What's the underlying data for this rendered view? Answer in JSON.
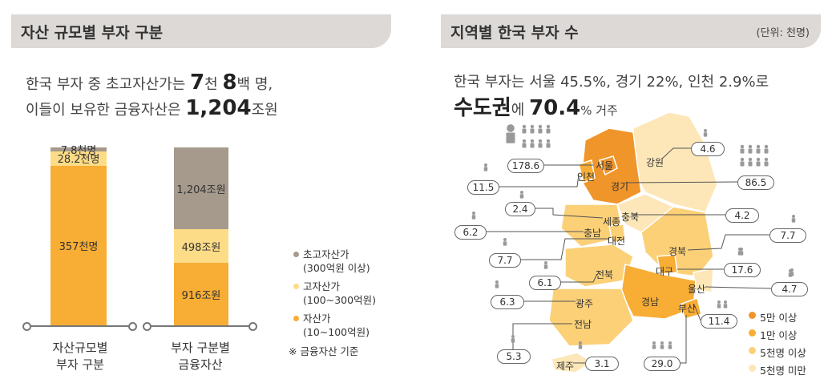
{
  "left": {
    "header": "자산 규모별 부자 구분",
    "line1": {
      "pre": "한국 부자 중 초고자산가는 ",
      "n1": "7",
      "u1": "천 ",
      "n2": "8",
      "u2": "백 명,"
    },
    "line2": {
      "pre": "이들이 보유한 금융자산은 ",
      "n": "1,204",
      "u": "조원"
    },
    "bar1_label": "자산규모별\n부자 구분",
    "bar2_label": "부자 구분별\n금융자산",
    "legend": [
      {
        "name": "초고자산가",
        "sub": "(300억원 이상)",
        "color": "#a69a8c"
      },
      {
        "name": "고자산가",
        "sub": "(100~300억원)",
        "color": "#fddc87"
      },
      {
        "name": "자산가",
        "sub": "(10~100억원)",
        "color": "#f8ad34"
      }
    ],
    "note": "※ 금융자산 기준"
  },
  "chart_data": [
    {
      "type": "bar",
      "stacked": true,
      "categories": [
        "자산규모별 부자 구분",
        "부자 구분별 금융자산"
      ],
      "series": [
        {
          "name": "자산가",
          "values": [
            357,
            916
          ],
          "labels": [
            "357천명",
            "916조원"
          ],
          "color": "#f8ad34"
        },
        {
          "name": "고자산가",
          "values": [
            28.2,
            498
          ],
          "labels": [
            "28.2천명",
            "498조원"
          ],
          "color": "#fddc87"
        },
        {
          "name": "초고자산가",
          "values": [
            7.8,
            1204
          ],
          "labels": [
            "7.8천명",
            "1,204조원"
          ],
          "color": "#a69a8c"
        }
      ]
    },
    {
      "type": "map",
      "unit": "(단위: 천명)",
      "regions": [
        {
          "name": "서울",
          "value": 178.6,
          "label": "178.6",
          "tier": "5만 이상"
        },
        {
          "name": "경기",
          "value": 86.5,
          "label": "86.5",
          "tier": "5만 이상"
        },
        {
          "name": "인천",
          "value": 11.5,
          "label": "11.5",
          "tier": "1만 이상"
        },
        {
          "name": "강원",
          "value": 4.6,
          "label": "4.6",
          "tier": "5천명 미만"
        },
        {
          "name": "세종",
          "value": 2.4,
          "label": "2.4",
          "tier": "5천명 미만"
        },
        {
          "name": "충북",
          "value": 4.2,
          "label": "4.2",
          "tier": "5천명 미만"
        },
        {
          "name": "충남",
          "value": 6.2,
          "label": "6.2",
          "tier": "5천명 이상"
        },
        {
          "name": "대전",
          "value": 7.7,
          "label": "7.7",
          "tier": "5천명 이상"
        },
        {
          "name": "경북",
          "value": 7.7,
          "label": "7.7",
          "tier": "5천명 이상"
        },
        {
          "name": "대구",
          "value": 17.6,
          "label": "17.6",
          "tier": "1만 이상"
        },
        {
          "name": "전북",
          "value": 6.1,
          "label": "6.1",
          "tier": "5천명 이상"
        },
        {
          "name": "울산",
          "value": 4.7,
          "label": "4.7",
          "tier": "5천명 미만"
        },
        {
          "name": "광주",
          "value": 6.3,
          "label": "6.3",
          "tier": "5천명 이상"
        },
        {
          "name": "경남",
          "value": 11.4,
          "label": "11.4",
          "tier": "1만 이상"
        },
        {
          "name": "부산",
          "value": 29.0,
          "label": "29.0",
          "tier": "1만 이상"
        },
        {
          "name": "전남",
          "value": 5.3,
          "label": "5.3",
          "tier": "5천명 이상"
        },
        {
          "name": "제주",
          "value": 3.1,
          "label": "3.1",
          "tier": "5천명 미만"
        }
      ]
    }
  ],
  "right": {
    "header": "지역별 한국 부자 수",
    "unit": "(단위: 천명)",
    "line1": "한국 부자는 서울 45.5%, 경기 22%, 인천 2.9%로",
    "line2": {
      "a": "수도권",
      "b": "에 ",
      "n": "70.4",
      "c": "% 거주"
    },
    "legend": [
      {
        "name": "5만 이상",
        "color": "#f0952a"
      },
      {
        "name": "1만 이상",
        "color": "#f8ad34"
      },
      {
        "name": "5천명 이상",
        "color": "#fbd077"
      },
      {
        "name": "5천명 미만",
        "color": "#fde7b8"
      }
    ]
  }
}
